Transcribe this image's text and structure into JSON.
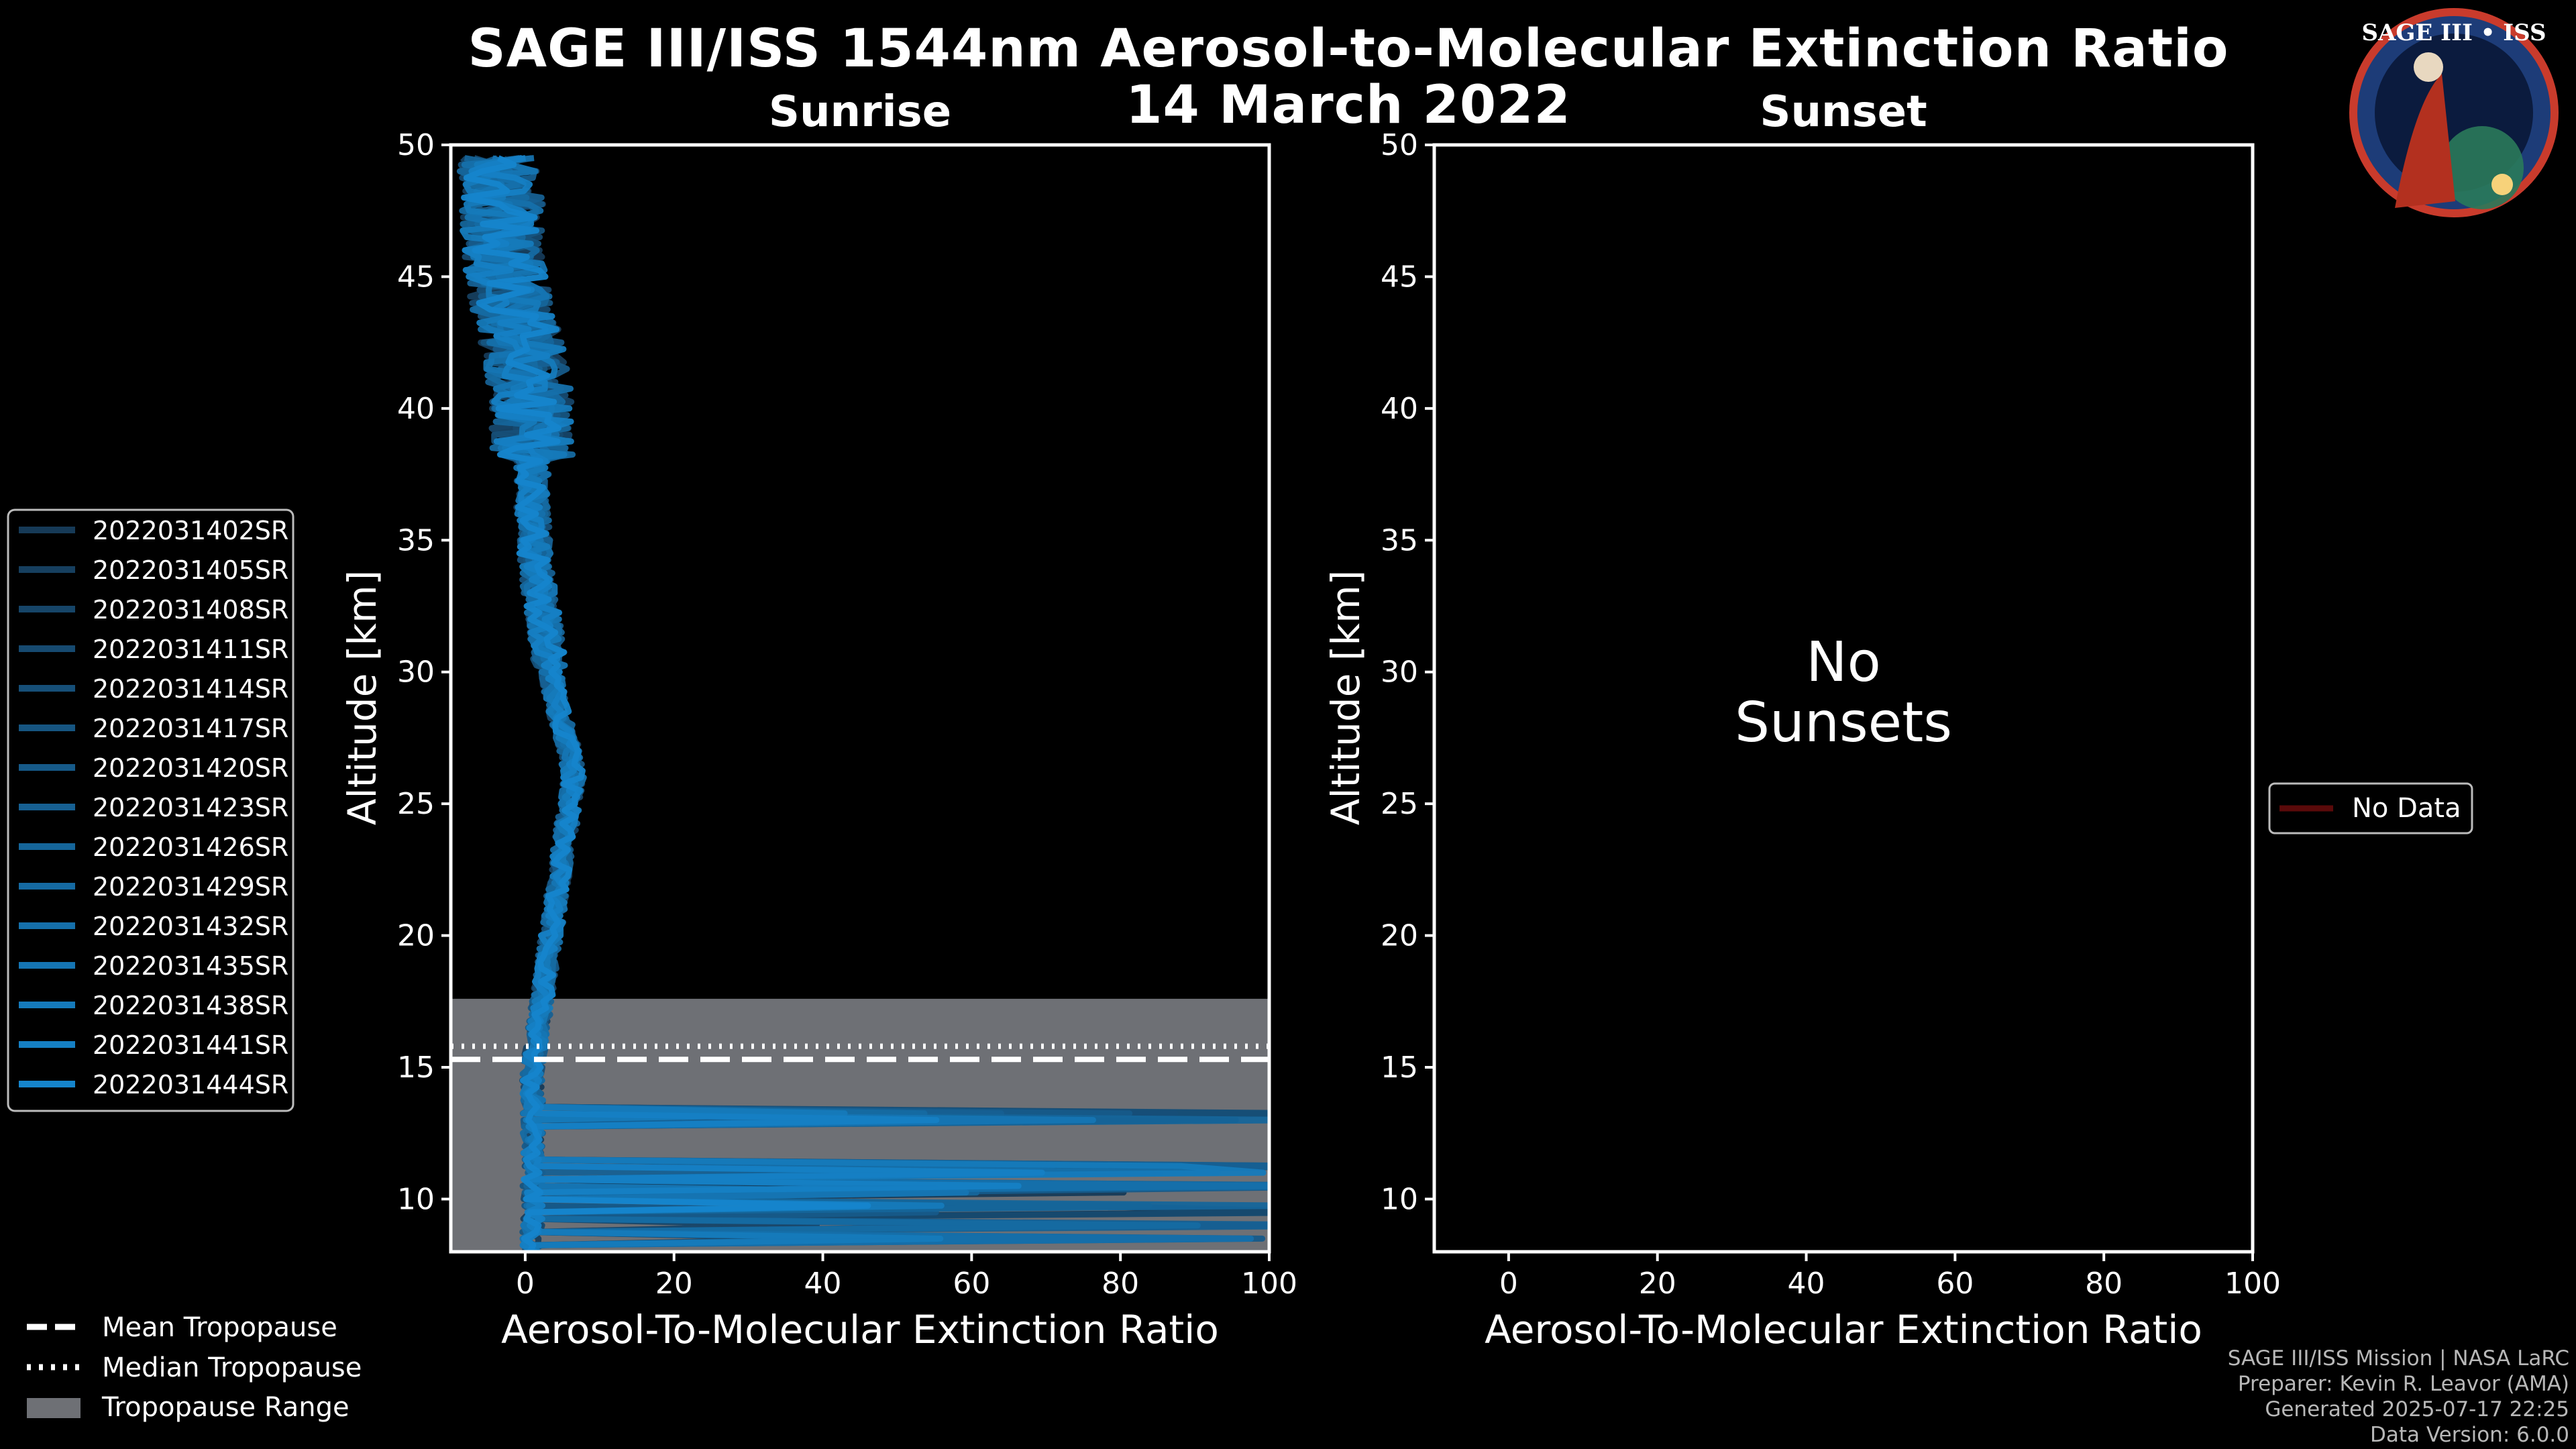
{
  "header": {
    "title": "SAGE III/ISS 1544nm Aerosol-to-Molecular Extinction Ratio",
    "date": "14 March 2022"
  },
  "logo": {
    "text": "SAGE III • ISS"
  },
  "colors": {
    "background": "#000000",
    "axis": "#ffffff",
    "tropopause_range": "#6e7075",
    "no_data": "#5a0a0a",
    "series_dark": "#163a57",
    "series_light": "#1585cc"
  },
  "chart_data": [
    {
      "type": "line",
      "title": "Sunrise",
      "xlabel": "Aerosol-To-Molecular Extinction Ratio",
      "ylabel": "Altitude [km]",
      "xlim": [
        -10,
        100
      ],
      "ylim": [
        8,
        50
      ],
      "xticks": [
        0,
        20,
        40,
        60,
        80,
        100
      ],
      "yticks": [
        10,
        15,
        20,
        25,
        30,
        35,
        40,
        45,
        50
      ],
      "tropopause": {
        "mean_km": 15.3,
        "median_km": 15.8,
        "range_km": [
          8,
          17.6
        ]
      },
      "series_names": [
        "2022031402SR",
        "2022031405SR",
        "2022031408SR",
        "2022031411SR",
        "2022031414SR",
        "2022031417SR",
        "2022031420SR",
        "2022031423SR",
        "2022031426SR",
        "2022031429SR",
        "2022031432SR",
        "2022031435SR",
        "2022031438SR",
        "2022031441SR",
        "2022031444SR"
      ],
      "profile_shape": {
        "altitude_km": [
          8,
          9,
          10,
          11,
          12,
          13,
          14,
          15,
          16,
          17,
          18,
          19,
          20,
          21,
          22,
          23,
          24,
          25,
          26,
          27,
          28,
          29,
          30,
          32,
          34,
          36,
          38,
          40,
          42,
          44,
          46,
          48,
          49.5
        ],
        "ratio": [
          1,
          1,
          1,
          1,
          1,
          1,
          1,
          1,
          1.5,
          2,
          2.5,
          3,
          3.5,
          4,
          4.5,
          5,
          5.5,
          6,
          6.5,
          6,
          5,
          4,
          3.5,
          2.5,
          1.5,
          1,
          1,
          1,
          0,
          -2,
          -3,
          -3,
          -4
        ]
      },
      "low_altitude_spikes_km": [
        8.4,
        9.0,
        9.4,
        9.8,
        10.2,
        10.6,
        11.0,
        11.3,
        12.9,
        13.3
      ]
    },
    {
      "type": "line",
      "title": "Sunset",
      "xlabel": "Aerosol-To-Molecular Extinction Ratio",
      "ylabel": "Altitude [km]",
      "xlim": [
        -10,
        100
      ],
      "ylim": [
        8,
        50
      ],
      "xticks": [
        0,
        20,
        40,
        60,
        80,
        100
      ],
      "yticks": [
        10,
        15,
        20,
        25,
        30,
        35,
        40,
        45,
        50
      ],
      "annotation": [
        "No",
        "Sunsets"
      ],
      "legend": [
        "No Data"
      ]
    }
  ],
  "bottom_legend": {
    "mean": "Mean Tropopause",
    "median": "Median Tropopause",
    "range": "Tropopause Range"
  },
  "footer": {
    "line1": "SAGE III/ISS Mission | NASA LaRC",
    "line2": "Preparer: Kevin R. Leavor (AMA)",
    "line3": "Generated 2025-07-17 22:25",
    "line4": "Data Version: 6.0.0"
  }
}
